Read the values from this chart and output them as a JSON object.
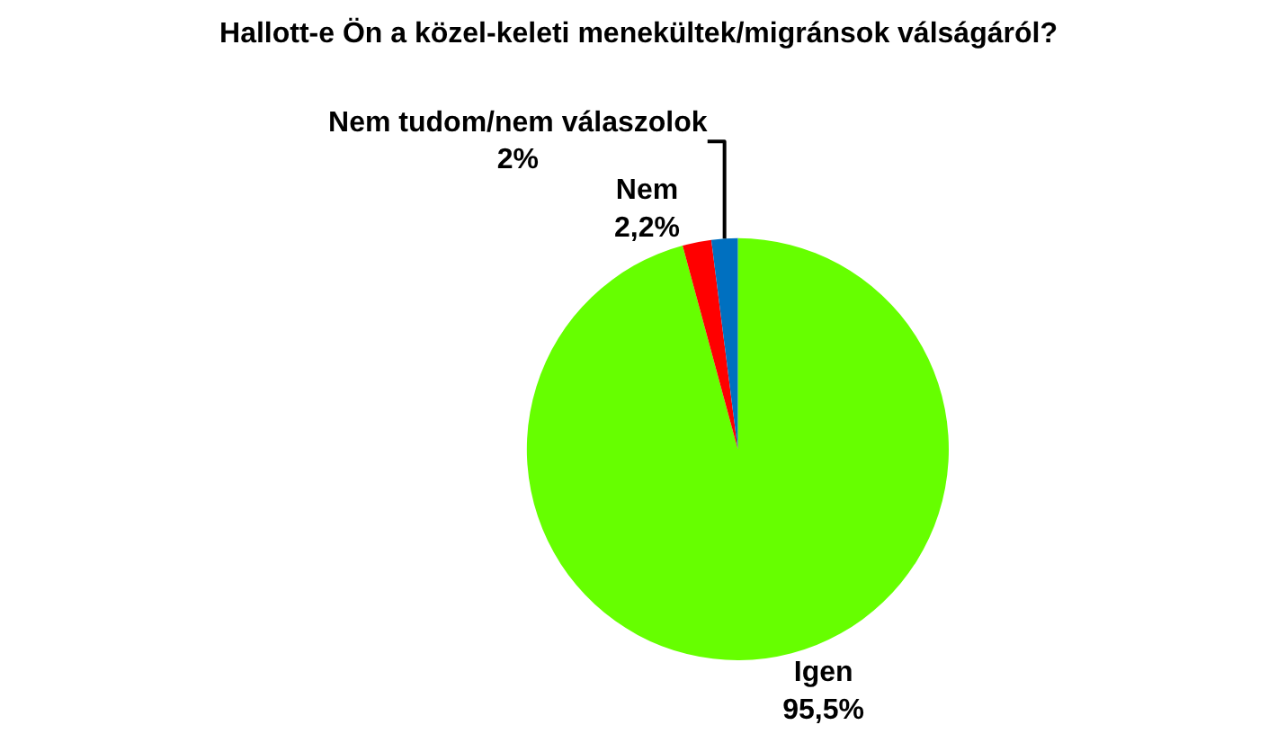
{
  "chart_data": {
    "type": "pie",
    "title": "Hallott-e Ön a közel-keleti menekültek/migránsok válságáról?",
    "categories": [
      "Igen",
      "Nem",
      "Nem tudom/nem válaszolok"
    ],
    "values": [
      95.5,
      2.2,
      2
    ],
    "value_labels": [
      "95,5%",
      "2,2%",
      "2%"
    ],
    "colors": [
      "#66ff00",
      "#ff0000",
      "#0070c0"
    ],
    "legend": false
  }
}
